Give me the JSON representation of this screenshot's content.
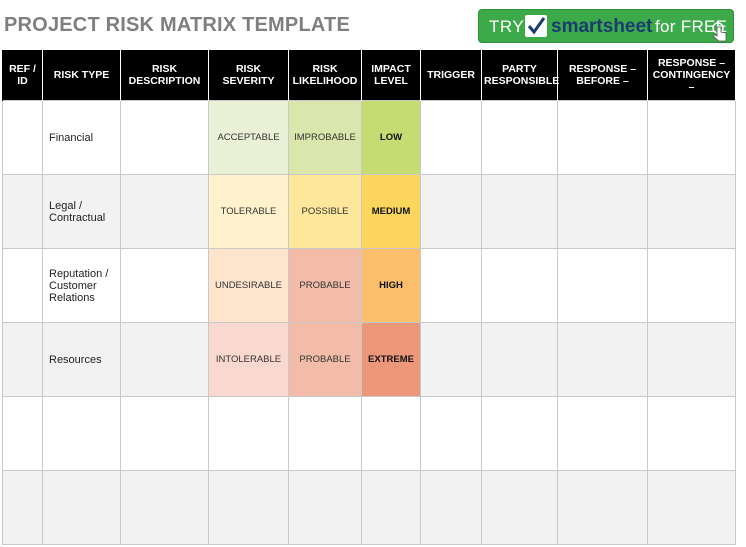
{
  "title": "PROJECT RISK MATRIX TEMPLATE",
  "cta": {
    "try": "TRY",
    "brand": "smartsheet",
    "free": "for FREE"
  },
  "headers": [
    "REF / ID",
    "RISK TYPE",
    "RISK DESCRIPTION",
    "RISK SEVERITY",
    "RISK LIKELIHOOD",
    "IMPACT LEVEL",
    "TRIGGER",
    "PARTY RESPONSIBLE",
    "RESPONSE – BEFORE –",
    "RESPONSE – CONTINGENCY –"
  ],
  "rows": [
    {
      "type": "Financial",
      "severity": "ACCEPTABLE",
      "likelihood": "IMPROBABLE",
      "impact": "LOW"
    },
    {
      "type": "Legal / Contractual",
      "severity": "TOLERABLE",
      "likelihood": "POSSIBLE",
      "impact": "MEDIUM"
    },
    {
      "type": "Reputation / Customer Relations",
      "severity": "UNDESIRABLE",
      "likelihood": "PROBABLE",
      "impact": "HIGH"
    },
    {
      "type": "Resources",
      "severity": "INTOLERABLE",
      "likelihood": "PROBABLE",
      "impact": "EXTREME"
    },
    {
      "type": "",
      "severity": "",
      "likelihood": "",
      "impact": ""
    },
    {
      "type": "",
      "severity": "",
      "likelihood": "",
      "impact": ""
    }
  ],
  "colors": {
    "header_bg": "#000000",
    "cta_green": "#3daa4a",
    "low": "#c5dc73",
    "medium": "#fcd55c",
    "high": "#fbbe6a",
    "extreme": "#ec967a"
  }
}
